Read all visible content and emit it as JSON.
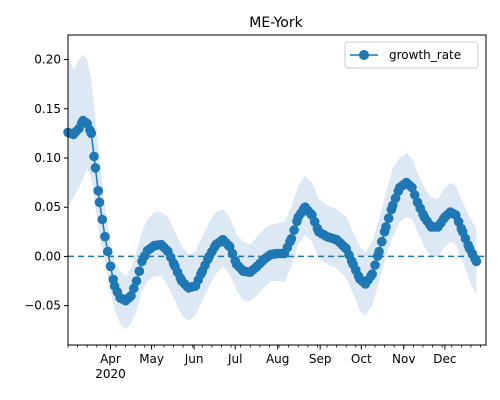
{
  "chart_data": {
    "type": "line",
    "title": "ME-York",
    "xlabel": "",
    "ylabel": "",
    "x_start": "2020-03-01",
    "x_end": "2020-12-31",
    "ylim": [
      -0.09,
      0.225
    ],
    "yticks": [
      -0.05,
      0.0,
      0.05,
      0.1,
      0.15,
      0.2
    ],
    "ytick_labels": [
      "−0.05",
      "0.00",
      "0.05",
      "0.10",
      "0.15",
      "0.20"
    ],
    "xticks": [
      {
        "date": "2020-04-01",
        "label": "Apr",
        "sublabel": "2020"
      },
      {
        "date": "2020-05-01",
        "label": "May"
      },
      {
        "date": "2020-06-01",
        "label": "Jun"
      },
      {
        "date": "2020-07-01",
        "label": "Jul"
      },
      {
        "date": "2020-08-01",
        "label": "Aug"
      },
      {
        "date": "2020-09-01",
        "label": "Sep"
      },
      {
        "date": "2020-10-01",
        "label": "Oct"
      },
      {
        "date": "2020-11-01",
        "label": "Nov"
      },
      {
        "date": "2020-12-01",
        "label": "Dec"
      }
    ],
    "reference_line": {
      "y": 0.0,
      "style": "dashed"
    },
    "legend": {
      "position": "top-right",
      "entries": [
        "growth_rate"
      ]
    },
    "colors": {
      "series": "#1f77b4",
      "band": "#dce9f5"
    },
    "series": [
      {
        "name": "growth_rate",
        "points": [
          [
            "2020-03-01",
            0.126,
            0.05,
            0.205
          ],
          [
            "2020-03-05",
            0.124,
            0.06,
            0.19
          ],
          [
            "2020-03-09",
            0.13,
            0.07,
            0.2
          ],
          [
            "2020-03-12",
            0.138,
            0.08,
            0.205
          ],
          [
            "2020-03-15",
            0.135,
            0.09,
            0.2
          ],
          [
            "2020-03-18",
            0.125,
            0.08,
            0.18
          ],
          [
            "2020-03-21",
            0.09,
            0.05,
            0.14
          ],
          [
            "2020-03-24",
            0.055,
            0.02,
            0.1
          ],
          [
            "2020-03-28",
            0.02,
            -0.005,
            0.05
          ],
          [
            "2020-04-01",
            -0.01,
            -0.035,
            0.015
          ],
          [
            "2020-04-04",
            -0.03,
            -0.055,
            -0.005
          ],
          [
            "2020-04-08",
            -0.042,
            -0.068,
            -0.015
          ],
          [
            "2020-04-12",
            -0.045,
            -0.074,
            -0.02
          ],
          [
            "2020-04-16",
            -0.04,
            -0.068,
            -0.012
          ],
          [
            "2020-04-20",
            -0.025,
            -0.055,
            0.005
          ],
          [
            "2020-04-24",
            -0.005,
            -0.035,
            0.025
          ],
          [
            "2020-04-28",
            0.006,
            -0.025,
            0.038
          ],
          [
            "2020-05-03",
            0.011,
            -0.02,
            0.045
          ],
          [
            "2020-05-08",
            0.012,
            -0.02,
            0.045
          ],
          [
            "2020-05-13",
            0.005,
            -0.03,
            0.04
          ],
          [
            "2020-05-18",
            -0.01,
            -0.045,
            0.025
          ],
          [
            "2020-05-23",
            -0.025,
            -0.06,
            0.01
          ],
          [
            "2020-05-28",
            -0.032,
            -0.065,
            0.002
          ],
          [
            "2020-06-02",
            -0.03,
            -0.06,
            0.005
          ],
          [
            "2020-06-07",
            -0.015,
            -0.045,
            0.02
          ],
          [
            "2020-06-12",
            0.0,
            -0.03,
            0.035
          ],
          [
            "2020-06-17",
            0.012,
            -0.018,
            0.045
          ],
          [
            "2020-06-22",
            0.017,
            -0.01,
            0.048
          ],
          [
            "2020-06-27",
            0.01,
            -0.018,
            0.04
          ],
          [
            "2020-07-02",
            -0.008,
            -0.035,
            0.022
          ],
          [
            "2020-07-07",
            -0.015,
            -0.045,
            0.015
          ],
          [
            "2020-07-12",
            -0.016,
            -0.045,
            0.012
          ],
          [
            "2020-07-17",
            -0.01,
            -0.04,
            0.02
          ],
          [
            "2020-07-22",
            -0.003,
            -0.032,
            0.028
          ],
          [
            "2020-07-27",
            0.002,
            -0.025,
            0.032
          ],
          [
            "2020-08-01",
            0.003,
            -0.025,
            0.034
          ],
          [
            "2020-08-06",
            0.003,
            -0.026,
            0.035
          ],
          [
            "2020-08-11",
            0.018,
            -0.01,
            0.05
          ],
          [
            "2020-08-16",
            0.04,
            0.012,
            0.072
          ],
          [
            "2020-08-21",
            0.05,
            0.022,
            0.082
          ],
          [
            "2020-08-26",
            0.042,
            0.015,
            0.075
          ],
          [
            "2020-08-31",
            0.025,
            -0.002,
            0.058
          ],
          [
            "2020-09-06",
            0.02,
            -0.008,
            0.052
          ],
          [
            "2020-09-13",
            0.017,
            -0.012,
            0.048
          ],
          [
            "2020-09-20",
            0.008,
            -0.022,
            0.04
          ],
          [
            "2020-09-25",
            -0.008,
            -0.038,
            0.025
          ],
          [
            "2020-09-30",
            -0.023,
            -0.055,
            0.01
          ],
          [
            "2020-10-04",
            -0.028,
            -0.06,
            0.004
          ],
          [
            "2020-10-09",
            -0.018,
            -0.05,
            0.015
          ],
          [
            "2020-10-14",
            0.005,
            -0.025,
            0.038
          ],
          [
            "2020-10-19",
            0.03,
            0.0,
            0.065
          ],
          [
            "2020-10-24",
            0.052,
            0.02,
            0.09
          ],
          [
            "2020-10-29",
            0.07,
            0.035,
            0.1
          ],
          [
            "2020-11-03",
            0.075,
            0.04,
            0.105
          ],
          [
            "2020-11-07",
            0.07,
            0.038,
            0.1
          ],
          [
            "2020-11-11",
            0.055,
            0.025,
            0.085
          ],
          [
            "2020-11-16",
            0.04,
            0.01,
            0.07
          ],
          [
            "2020-11-21",
            0.03,
            0.0,
            0.06
          ],
          [
            "2020-11-26",
            0.03,
            0.0,
            0.058
          ],
          [
            "2020-12-01",
            0.04,
            0.01,
            0.07
          ],
          [
            "2020-12-05",
            0.045,
            0.015,
            0.075
          ],
          [
            "2020-12-09",
            0.042,
            0.012,
            0.072
          ],
          [
            "2020-12-14",
            0.025,
            -0.005,
            0.055
          ],
          [
            "2020-12-19",
            0.008,
            -0.025,
            0.04
          ],
          [
            "2020-12-24",
            -0.005,
            -0.04,
            0.028
          ]
        ]
      }
    ]
  }
}
